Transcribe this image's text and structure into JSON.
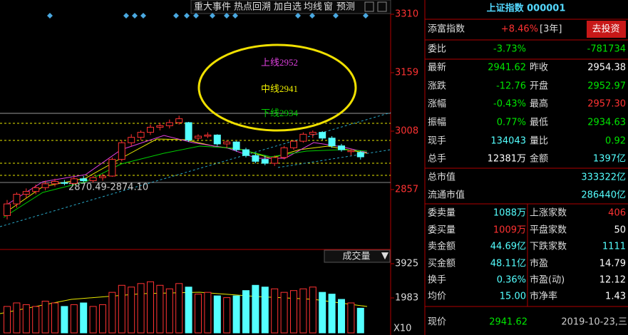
{
  "toolbar": [
    "重大事件",
    "热点回溯",
    "加自选",
    "均线",
    "窗",
    "预测"
  ],
  "chart": {
    "ylim": [
      2706,
      3310
    ],
    "yticks": [
      3310,
      3159,
      3008,
      2857
    ],
    "range_label": "2870.49-2874.10",
    "annotation": [
      "上线2952",
      "中线2941",
      "下线2934"
    ],
    "up_color": "#ff3232",
    "down_color": "#54ffff",
    "open": [
      2790,
      2820,
      2845,
      2852,
      2862,
      2872,
      2875,
      2873,
      2885,
      2880,
      2888,
      2892,
      2935,
      2978,
      2992,
      3005,
      3018,
      3022,
      3030,
      3030,
      2990,
      2995,
      2998,
      2975,
      2980,
      2960,
      2945,
      2935,
      2925,
      2940,
      2965,
      2982,
      3000,
      3005,
      2990,
      2970,
      2955,
      2952.97
    ],
    "high": [
      2830,
      2850,
      2860,
      2870,
      2880,
      2885,
      2882,
      2890,
      2892,
      2893,
      2898,
      2940,
      2985,
      3000,
      3010,
      3025,
      3030,
      3038,
      3048,
      3032,
      3000,
      3005,
      3000,
      2985,
      2982,
      2965,
      2950,
      2945,
      2945,
      2970,
      2985,
      3005,
      3010,
      3008,
      2995,
      2975,
      2962,
      2957.3
    ],
    "low": [
      2780,
      2810,
      2835,
      2845,
      2855,
      2865,
      2868,
      2870,
      2876,
      2875,
      2880,
      2890,
      2930,
      2970,
      2985,
      2998,
      3010,
      3015,
      3025,
      2980,
      2985,
      2990,
      2970,
      2965,
      2955,
      2940,
      2925,
      2920,
      2918,
      2935,
      2960,
      2978,
      2990,
      2985,
      2965,
      2955,
      2945,
      2934.63
    ],
    "close": [
      2820,
      2845,
      2852,
      2862,
      2872,
      2878,
      2873,
      2885,
      2880,
      2888,
      2892,
      2935,
      2978,
      2992,
      3005,
      3018,
      3022,
      3030,
      3040,
      2985,
      2995,
      2998,
      2975,
      2980,
      2960,
      2945,
      2930,
      2925,
      2940,
      2965,
      2982,
      3000,
      3005,
      2990,
      2970,
      2960,
      2958,
      2941.62
    ],
    "indicator_menu": "成交量",
    "volume": {
      "ylim": [
        0,
        3925
      ],
      "yticks": [
        3925,
        1983
      ],
      "multiplier": "X10",
      "values": [
        1500,
        1700,
        1600,
        1500,
        1800,
        1700,
        1500,
        1600,
        1700,
        1500,
        1600,
        2300,
        2700,
        2600,
        2800,
        2900,
        2700,
        2500,
        2800,
        2600,
        2200,
        2300,
        2100,
        2000,
        2100,
        2400,
        2700,
        2600,
        2500,
        2300,
        2400,
        2500,
        2600,
        2300,
        2200,
        1900,
        1700,
        1400
      ]
    }
  },
  "panel": {
    "title": "上证指数 000001",
    "fund": {
      "label": "添富指数",
      "value": "+8.46%",
      "period": "[3年]",
      "button": "去投资"
    },
    "rows": [
      {
        "label": "委比",
        "value": "-3.73%",
        "color": "#00e600",
        "label2": "",
        "value2": "-781734",
        "color2": "#00e600"
      },
      {
        "label": "最新",
        "value": "2941.62",
        "color": "#00e600",
        "label2": "昨收",
        "value2": "2954.38",
        "color2": "#ffffff"
      },
      {
        "label": "涨跌",
        "value": "-12.76",
        "color": "#00e600",
        "label2": "开盘",
        "value2": "2952.97",
        "color2": "#00e600"
      },
      {
        "label": "涨幅",
        "value": "-0.43%",
        "color": "#00e600",
        "label2": "最高",
        "value2": "2957.30",
        "color2": "#ff3232"
      },
      {
        "label": "振幅",
        "value": "0.77%",
        "color": "#00e600",
        "label2": "最低",
        "value2": "2934.63",
        "color2": "#00e600"
      },
      {
        "label": "现手",
        "value": "134043",
        "color": "#54ffff",
        "label2": "量比",
        "value2": "0.92",
        "color2": "#00e600"
      },
      {
        "label": "总手",
        "value": "12381万",
        "color": "#ffffff",
        "label2": "金额",
        "value2": "1397亿",
        "color2": "#54ffff"
      },
      {
        "label": "总市值",
        "value": "",
        "color": "#ffffff",
        "label2": "",
        "value2": "333322亿",
        "color2": "#54ffff"
      },
      {
        "label": "流通市值",
        "value": "",
        "color": "#ffffff",
        "label2": "",
        "value2": "286440亿",
        "color2": "#54ffff"
      },
      {
        "label": "委卖量",
        "value": "1088万",
        "color": "#54ffff",
        "label2": "上涨家数",
        "value2": "406",
        "color2": "#ff3232"
      },
      {
        "label": "委买量",
        "value": "1009万",
        "color": "#ff3232",
        "label2": "平盘家数",
        "value2": "50",
        "color2": "#ffffff"
      },
      {
        "label": "卖金额",
        "value": "44.69亿",
        "color": "#54ffff",
        "label2": "下跌家数",
        "value2": "1111",
        "color2": "#54ffff"
      },
      {
        "label": "买金额",
        "value": "48.11亿",
        "color": "#54ffff",
        "label2": "市盈",
        "value2": "14.79",
        "color2": "#ffffff"
      },
      {
        "label": "换手",
        "value": "0.36%",
        "color": "#54ffff",
        "label2": "市盈(动)",
        "value2": "12.12",
        "color2": "#ffffff"
      },
      {
        "label": "均价",
        "value": "15.00",
        "color": "#54ffff",
        "label2": "市净率",
        "value2": "1.43",
        "color2": "#ffffff"
      }
    ],
    "footer": {
      "label": "现价",
      "value": "2941.62",
      "date": "2019-10-23,三"
    }
  }
}
